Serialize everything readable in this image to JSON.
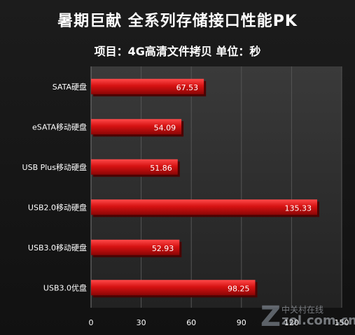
{
  "chart_data": {
    "type": "bar",
    "orientation": "horizontal",
    "title": "暑期巨献  全系列存储接口性能PK",
    "subtitle": "项目：4G高清文件拷贝   单位：秒",
    "categories": [
      "SATA硬盘",
      "eSATA移动硬盘",
      "USB Plus移动硬盘",
      "USB2.0移动硬盘",
      "USB3.0移动硬盘",
      "USB3.0优盘"
    ],
    "values": [
      67.53,
      54.09,
      51.86,
      135.33,
      52.93,
      98.25
    ],
    "value_labels": [
      "67.53",
      "54.09",
      "51.86",
      "135.33",
      "52.93",
      "98.25"
    ],
    "xticks": [
      "0",
      "30",
      "60",
      "90",
      "120",
      "150"
    ],
    "xlim": [
      0,
      150
    ],
    "xlabel": "",
    "ylabel": "",
    "grid": true,
    "legend": "none",
    "bar_color": "#cc1010"
  },
  "watermark": {
    "logo_glyph": "Z",
    "site_name": "中关村在线",
    "url": "zol.com.cn"
  }
}
